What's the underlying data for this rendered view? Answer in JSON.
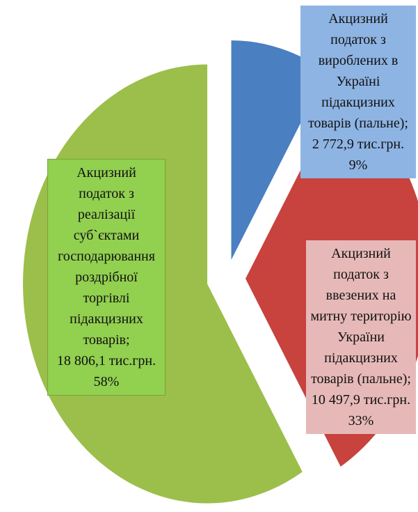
{
  "chart_data": {
    "type": "pie",
    "categories": [
      "Акцизний податок з вироблених в Україні підакцизних товарів (пальне);",
      "Акцизний податок з ввезених на митну територію України підакцизних товарів (пальне);",
      "Акцизний податок з реалізації суб`єктами господарювання роздрібної торгівлі підакцизних товарів;"
    ],
    "values": [
      2772.9,
      10497.9,
      18806.1
    ],
    "value_labels": [
      "2 772,9 тис.грн.",
      "10 497,9 тис.грн.",
      "18 806,1 тис.грн."
    ],
    "percents": [
      9,
      33,
      58
    ],
    "percent_labels": [
      "9%",
      "33%",
      "58%"
    ],
    "colors": [
      "#4a7fc1",
      "#c8423e",
      "#9bbf4a"
    ],
    "label_colors": [
      "#8eb4e3",
      "#e6b9b8",
      "#92d050"
    ]
  }
}
